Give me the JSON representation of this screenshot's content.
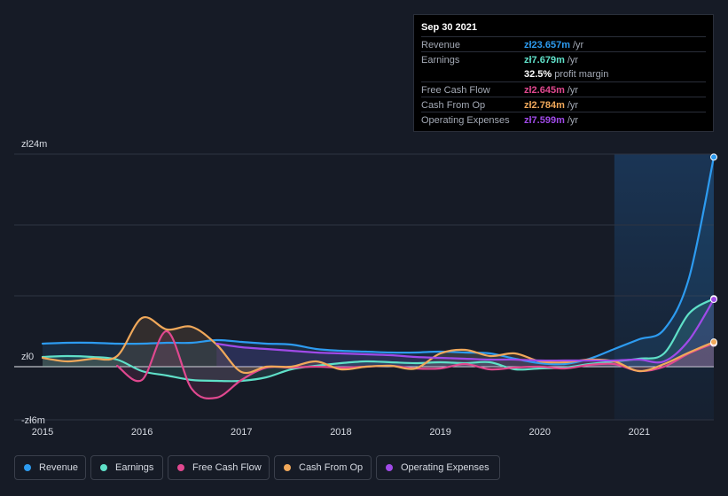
{
  "tooltip": {
    "date": "Sep 30 2021",
    "rows": [
      {
        "label": "Revenue",
        "value": "zł23.657m",
        "unit": "/yr",
        "color": "#2d9bf0"
      },
      {
        "label": "Earnings",
        "value": "zł7.679m",
        "unit": "/yr",
        "color": "#5fe0c8"
      },
      {
        "label": "",
        "value": "32.5%",
        "unit": "profit margin",
        "color": "#ffffff"
      },
      {
        "label": "Free Cash Flow",
        "value": "zł2.645m",
        "unit": "/yr",
        "color": "#e0488f"
      },
      {
        "label": "Cash From Op",
        "value": "zł2.784m",
        "unit": "/yr",
        "color": "#f0a85a"
      },
      {
        "label": "Operating Expenses",
        "value": "zł7.599m",
        "unit": "/yr",
        "color": "#a04ae8"
      }
    ]
  },
  "legend": [
    {
      "label": "Revenue",
      "color": "#2d9bf0"
    },
    {
      "label": "Earnings",
      "color": "#5fe0c8"
    },
    {
      "label": "Free Cash Flow",
      "color": "#e0488f"
    },
    {
      "label": "Cash From Op",
      "color": "#f0a85a"
    },
    {
      "label": "Operating Expenses",
      "color": "#a04ae8"
    }
  ],
  "chart_data": {
    "type": "line",
    "title": "",
    "xlabel": "",
    "ylabel": "",
    "currency_prefix": "zł",
    "ylim": [
      -6,
      24
    ],
    "xlim": [
      2015.0,
      2021.75
    ],
    "y_tick_labels": [
      {
        "value": 24,
        "label": "zł24m"
      },
      {
        "value": 0,
        "label": "zł0"
      },
      {
        "value": -6,
        "label": "-zł6m"
      }
    ],
    "x_tick_labels": [
      {
        "value": 2015,
        "label": "2015"
      },
      {
        "value": 2016,
        "label": "2016"
      },
      {
        "value": 2017,
        "label": "2017"
      },
      {
        "value": 2018,
        "label": "2018"
      },
      {
        "value": 2019,
        "label": "2019"
      },
      {
        "value": 2020,
        "label": "2020"
      },
      {
        "value": 2021,
        "label": "2021"
      }
    ],
    "highlight_from": 2020.75,
    "series": [
      {
        "name": "Revenue",
        "color": "#2d9bf0",
        "x": [
          2015.0,
          2015.25,
          2015.5,
          2015.75,
          2016.0,
          2016.25,
          2016.5,
          2016.75,
          2017.0,
          2017.25,
          2017.5,
          2017.75,
          2018.0,
          2018.25,
          2018.5,
          2018.75,
          2019.0,
          2019.25,
          2019.5,
          2019.75,
          2020.0,
          2020.25,
          2020.5,
          2020.75,
          2021.0,
          2021.25,
          2021.5,
          2021.75
        ],
        "values": [
          2.6,
          2.7,
          2.7,
          2.6,
          2.6,
          2.7,
          2.7,
          3.0,
          2.8,
          2.6,
          2.5,
          2.0,
          1.8,
          1.7,
          1.6,
          1.6,
          1.7,
          1.6,
          1.5,
          0.9,
          0.4,
          0.3,
          0.9,
          2.0,
          3.1,
          4.2,
          10.0,
          23.657
        ]
      },
      {
        "name": "Earnings",
        "color": "#5fe0c8",
        "x": [
          2015.0,
          2015.25,
          2015.5,
          2015.75,
          2016.0,
          2016.25,
          2016.5,
          2016.75,
          2017.0,
          2017.25,
          2017.5,
          2017.75,
          2018.0,
          2018.25,
          2018.5,
          2018.75,
          2019.0,
          2019.25,
          2019.5,
          2019.75,
          2020.0,
          2020.25,
          2020.5,
          2020.75,
          2021.0,
          2021.25,
          2021.5,
          2021.75
        ],
        "values": [
          1.1,
          1.2,
          1.1,
          0.8,
          -0.5,
          -1.0,
          -1.5,
          -1.6,
          -1.6,
          -1.2,
          -0.3,
          0.1,
          0.4,
          0.6,
          0.5,
          0.4,
          0.5,
          0.4,
          0.5,
          -0.3,
          -0.2,
          -0.1,
          0.3,
          0.6,
          0.9,
          1.5,
          6.0,
          7.679
        ]
      },
      {
        "name": "Free Cash Flow",
        "color": "#e0488f",
        "x": [
          2015.75,
          2016.0,
          2016.25,
          2016.5,
          2016.75,
          2017.0,
          2017.25,
          2017.5,
          2017.75,
          2018.0,
          2018.25,
          2018.5,
          2018.75,
          2019.0,
          2019.25,
          2019.5,
          2019.75,
          2020.0,
          2020.25,
          2020.5,
          2020.75,
          2021.0,
          2021.25,
          2021.5,
          2021.75
        ],
        "values": [
          0.1,
          -1.5,
          4.0,
          -2.5,
          -3.5,
          -1.5,
          -0.1,
          -0.1,
          0.0,
          -0.1,
          0.0,
          0.1,
          -0.2,
          -0.2,
          0.3,
          -0.3,
          -0.1,
          0.0,
          -0.2,
          0.2,
          0.3,
          -0.5,
          0.0,
          1.5,
          2.645
        ]
      },
      {
        "name": "Cash From Op",
        "color": "#f0a85a",
        "x": [
          2015.0,
          2015.25,
          2015.5,
          2015.75,
          2016.0,
          2016.25,
          2016.5,
          2016.75,
          2017.0,
          2017.25,
          2017.5,
          2017.75,
          2018.0,
          2018.25,
          2018.5,
          2018.75,
          2019.0,
          2019.25,
          2019.5,
          2019.75,
          2020.0,
          2020.25,
          2020.5,
          2020.75,
          2021.0,
          2021.25,
          2021.5,
          2021.75
        ],
        "values": [
          1.0,
          0.6,
          0.9,
          1.2,
          5.5,
          4.2,
          4.5,
          2.5,
          -0.6,
          0.0,
          0.0,
          0.6,
          -0.3,
          0.0,
          0.1,
          -0.2,
          1.5,
          1.9,
          1.2,
          1.5,
          0.6,
          0.5,
          0.8,
          0.6,
          -0.5,
          0.3,
          1.6,
          2.784
        ]
      },
      {
        "name": "Operating Expenses",
        "color": "#a04ae8",
        "x": [
          2016.75,
          2017.0,
          2017.25,
          2017.5,
          2017.75,
          2018.0,
          2018.25,
          2018.5,
          2018.75,
          2019.0,
          2019.25,
          2019.5,
          2019.75,
          2020.0,
          2020.25,
          2020.5,
          2020.75,
          2021.0,
          2021.25,
          2021.5,
          2021.75
        ],
        "values": [
          2.6,
          2.2,
          2.0,
          1.8,
          1.6,
          1.5,
          1.4,
          1.3,
          1.1,
          1.0,
          0.9,
          0.8,
          0.8,
          0.7,
          0.7,
          0.7,
          0.7,
          0.8,
          0.6,
          3.0,
          7.599
        ]
      }
    ]
  }
}
